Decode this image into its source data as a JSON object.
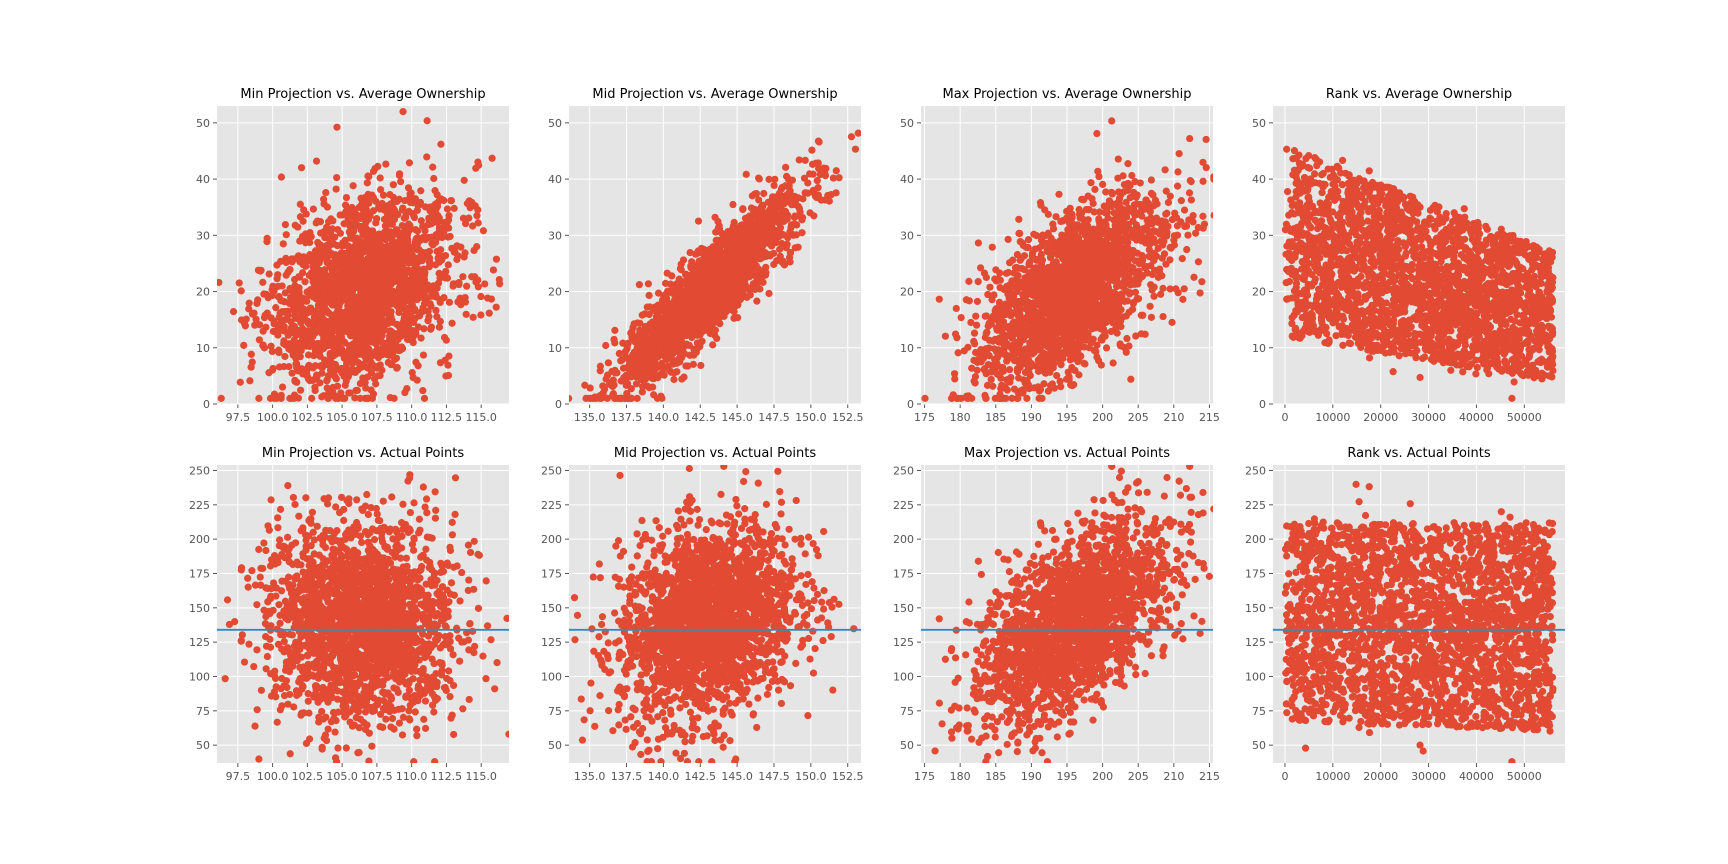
{
  "figure": {
    "background": "#ffffff"
  },
  "style": {
    "plot_bg": "#e5e5e5",
    "grid": "#ffffff",
    "marker_color": "#e24a33",
    "hline_color": "#348abd",
    "tick_color": "#555555"
  },
  "chart_data": [
    {
      "type": "scatter",
      "title": "Min Projection vs. Average Ownership",
      "xlim": [
        96,
        117
      ],
      "ylim": [
        0,
        53
      ],
      "xticks": [
        97.5,
        100.0,
        102.5,
        105.0,
        107.5,
        110.0,
        112.5,
        115.0
      ],
      "xtick_labels": [
        "97.5",
        "100.0",
        "102.5",
        "105.0",
        "107.5",
        "110.0",
        "112.5",
        "115.0"
      ],
      "yticks": [
        0,
        10,
        20,
        30,
        40,
        50
      ],
      "ytick_labels": [
        "0",
        "10",
        "20",
        "30",
        "40",
        "50"
      ],
      "grid": true,
      "cloud": {
        "cx": 106.5,
        "sx": 3.3,
        "cy": 20,
        "sy": 8.5,
        "rho": 0.3
      }
    },
    {
      "type": "scatter",
      "title": "Mid Projection vs. Average Ownership",
      "xlim": [
        133.6,
        153.4
      ],
      "ylim": [
        0,
        53
      ],
      "xticks": [
        135.0,
        137.5,
        140.0,
        142.5,
        145.0,
        147.5,
        150.0,
        152.5
      ],
      "xtick_labels": [
        "135.0",
        "137.5",
        "140.0",
        "142.5",
        "145.0",
        "147.5",
        "150.0",
        "152.5"
      ],
      "yticks": [
        0,
        10,
        20,
        30,
        40,
        50
      ],
      "ytick_labels": [
        "0",
        "10",
        "20",
        "30",
        "40",
        "50"
      ],
      "grid": true,
      "cloud": {
        "cx": 143,
        "sx": 3.0,
        "cy": 20,
        "sy": 8.5,
        "rho": 0.9
      }
    },
    {
      "type": "scatter",
      "title": "Max Projection vs. Average Ownership",
      "xlim": [
        174.5,
        215.5
      ],
      "ylim": [
        0,
        53
      ],
      "xticks": [
        175,
        180,
        185,
        190,
        195,
        200,
        205,
        210,
        215
      ],
      "xtick_labels": [
        "175",
        "180",
        "185",
        "190",
        "195",
        "200",
        "205",
        "210",
        "215"
      ],
      "yticks": [
        0,
        10,
        20,
        30,
        40,
        50
      ],
      "ytick_labels": [
        "0",
        "10",
        "20",
        "30",
        "40",
        "50"
      ],
      "grid": true,
      "cloud": {
        "cx": 196,
        "sx": 6.5,
        "cy": 20,
        "sy": 8.5,
        "rho": 0.6
      }
    },
    {
      "type": "scatter",
      "title": "Rank vs. Average Ownership",
      "xlim": [
        -2500,
        58500
      ],
      "ylim": [
        0,
        53
      ],
      "xticks": [
        0,
        10000,
        20000,
        30000,
        40000,
        50000
      ],
      "xtick_labels": [
        "0",
        "10000",
        "20000",
        "30000",
        "40000",
        "50000"
      ],
      "yticks": [
        0,
        10,
        20,
        30,
        40,
        50
      ],
      "ytick_labels": [
        "0",
        "10",
        "20",
        "30",
        "40",
        "50"
      ],
      "grid": true,
      "cloud": {
        "kind": "rank",
        "xmin": 0,
        "xmax": 56000,
        "ytop": [
          46,
          27
        ],
        "ybot": [
          12,
          4
        ],
        "cy": [
          27,
          15
        ],
        "sy": [
          7,
          6
        ]
      }
    },
    {
      "type": "scatter",
      "title": "Min Projection vs. Actual Points",
      "xlim": [
        96,
        117
      ],
      "ylim": [
        37,
        254
      ],
      "xticks": [
        97.5,
        100.0,
        102.5,
        105.0,
        107.5,
        110.0,
        112.5,
        115.0
      ],
      "xtick_labels": [
        "97.5",
        "100.0",
        "102.5",
        "105.0",
        "107.5",
        "110.0",
        "112.5",
        "115.0"
      ],
      "yticks": [
        50,
        75,
        100,
        125,
        150,
        175,
        200,
        225,
        250
      ],
      "ytick_labels": [
        "50",
        "75",
        "100",
        "125",
        "150",
        "175",
        "200",
        "225",
        "250"
      ],
      "grid": true,
      "hline": 134,
      "cloud": {
        "cx": 106.5,
        "sx": 3.3,
        "cy": 140,
        "sy": 36,
        "rho": 0.0
      }
    },
    {
      "type": "scatter",
      "title": "Mid Projection vs. Actual Points",
      "xlim": [
        133.6,
        153.4
      ],
      "ylim": [
        37,
        254
      ],
      "xticks": [
        135.0,
        137.5,
        140.0,
        142.5,
        145.0,
        147.5,
        150.0,
        152.5
      ],
      "xtick_labels": [
        "135.0",
        "137.5",
        "140.0",
        "142.5",
        "145.0",
        "147.5",
        "150.0",
        "152.5"
      ],
      "yticks": [
        50,
        75,
        100,
        125,
        150,
        175,
        200,
        225,
        250
      ],
      "ytick_labels": [
        "50",
        "75",
        "100",
        "125",
        "150",
        "175",
        "200",
        "225",
        "250"
      ],
      "grid": true,
      "hline": 134,
      "cloud": {
        "cx": 143,
        "sx": 3.0,
        "cy": 140,
        "sy": 36,
        "rho": 0.25
      }
    },
    {
      "type": "scatter",
      "title": "Max Projection vs. Actual Points",
      "xlim": [
        174.5,
        215.5
      ],
      "ylim": [
        37,
        254
      ],
      "xticks": [
        175,
        180,
        185,
        190,
        195,
        200,
        205,
        210,
        215
      ],
      "xtick_labels": [
        "175",
        "180",
        "185",
        "190",
        "195",
        "200",
        "205",
        "210",
        "215"
      ],
      "yticks": [
        50,
        75,
        100,
        125,
        150,
        175,
        200,
        225,
        250
      ],
      "ytick_labels": [
        "50",
        "75",
        "100",
        "125",
        "150",
        "175",
        "200",
        "225",
        "250"
      ],
      "grid": true,
      "hline": 134,
      "cloud": {
        "cx": 196,
        "sx": 6.5,
        "cy": 140,
        "sy": 36,
        "rho": 0.55
      }
    },
    {
      "type": "scatter",
      "title": "Rank vs. Actual Points",
      "xlim": [
        -2500,
        58500
      ],
      "ylim": [
        37,
        254
      ],
      "xticks": [
        0,
        10000,
        20000,
        30000,
        40000,
        50000
      ],
      "xtick_labels": [
        "0",
        "10000",
        "20000",
        "30000",
        "40000",
        "50000"
      ],
      "yticks": [
        50,
        75,
        100,
        125,
        150,
        175,
        200,
        225,
        250
      ],
      "ytick_labels": [
        "50",
        "75",
        "100",
        "125",
        "150",
        "175",
        "200",
        "225",
        "250"
      ],
      "grid": true,
      "hline": 134,
      "cloud": {
        "kind": "rank",
        "xmin": 0,
        "xmax": 56000,
        "ytop": [
          212,
          212
        ],
        "ybot": [
          68,
          60
        ],
        "cy": [
          140,
          140
        ],
        "sy": [
          36,
          36
        ]
      }
    }
  ]
}
